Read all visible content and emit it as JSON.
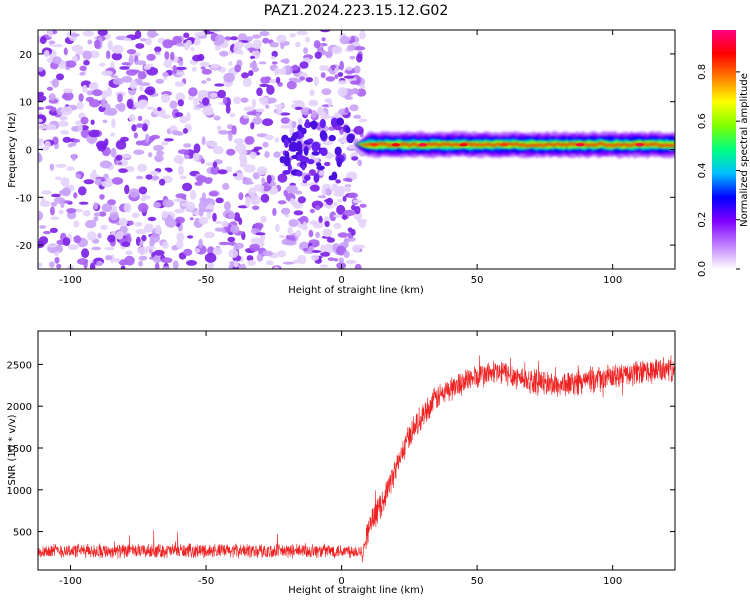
{
  "title": "PAZ1.2024.223.15.12.G02",
  "chart_data": [
    {
      "type": "heatmap",
      "xlabel": "Height of straight line (km)",
      "ylabel": "Frequency (Hz)",
      "xlim": [
        -112,
        123
      ],
      "ylim": [
        -25,
        25
      ],
      "xticks": [
        -100,
        -50,
        0,
        50,
        100
      ],
      "yticks": [
        20,
        10,
        0,
        -10,
        -20
      ],
      "xtick_labels": [
        "-100",
        "-50",
        "0",
        "50",
        "100"
      ],
      "ytick_labels": [
        "20",
        "10",
        "0",
        "-10",
        "-20"
      ],
      "colorbar": {
        "label": "Normalized spectral amplitude",
        "range": [
          0,
          0.97
        ],
        "ticks": [
          0.0,
          0.2,
          0.4,
          0.6,
          0.8
        ],
        "tick_labels": [
          "0.0",
          "0.2",
          "0.4",
          "0.6",
          "0.8"
        ],
        "colormap": [
          "#ffffff",
          "#c080ff",
          "#8000ff",
          "#0000ff",
          "#00c0ff",
          "#00ff80",
          "#80ff00",
          "#ffff00",
          "#ff8000",
          "#ff0000",
          "#ff0080"
        ]
      },
      "regions": [
        {
          "description_range_km": [
            -112,
            5
          ],
          "frequency_range_hz": [
            -25,
            25
          ],
          "typical_amplitude": 0.05
        },
        {
          "description_range_km": [
            5,
            123
          ],
          "center_frequency_hz": 1,
          "bandwidth_hz": 3,
          "peak_amplitude": 0.9
        }
      ]
    },
    {
      "type": "line",
      "xlabel": "Height of straight line (km)",
      "ylabel": "SNR (10 * v/v)",
      "xlim": [
        -112,
        123
      ],
      "ylim": [
        40,
        2900
      ],
      "xticks": [
        -100,
        -50,
        0,
        50,
        100
      ],
      "yticks": [
        500,
        1000,
        1500,
        2000,
        2500
      ],
      "xtick_labels": [
        "-100",
        "-50",
        "0",
        "50",
        "100"
      ],
      "ytick_labels": [
        "500",
        "1000",
        "1500",
        "2000",
        "2500"
      ],
      "color": "#ee2222",
      "series": [
        {
          "x": [
            -112,
            -100,
            -80,
            -60,
            -40,
            -20,
            0,
            8,
            10,
            15,
            20,
            25,
            30,
            35,
            40,
            45,
            50,
            55,
            60,
            70,
            80,
            90,
            100,
            110,
            123
          ],
          "y": [
            270,
            270,
            265,
            270,
            270,
            265,
            270,
            270,
            550,
            850,
            1250,
            1650,
            1900,
            2100,
            2200,
            2300,
            2350,
            2400,
            2400,
            2300,
            2250,
            2300,
            2350,
            2400,
            2450
          ]
        }
      ]
    }
  ]
}
